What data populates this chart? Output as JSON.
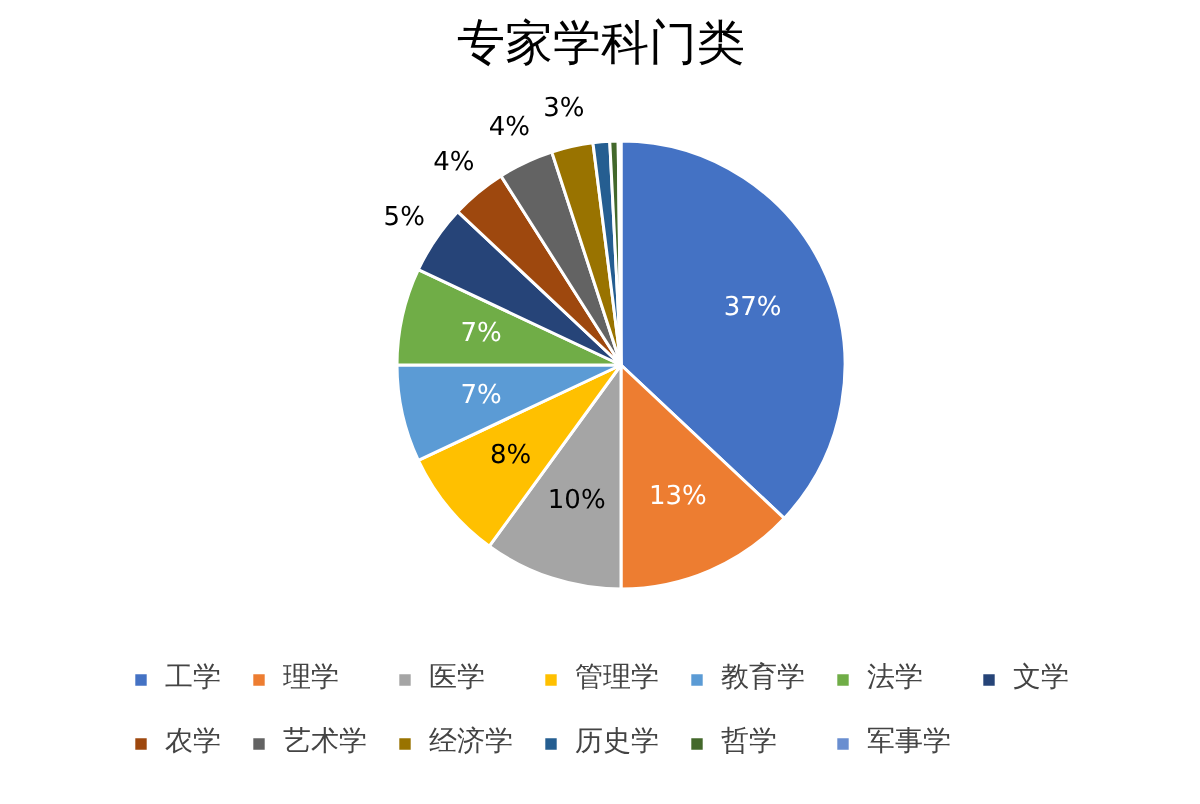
{
  "chart_data": {
    "type": "pie",
    "title": "专家学科门类",
    "categories": [
      "工学",
      "理学",
      "医学",
      "管理学",
      "教育学",
      "法学",
      "文学",
      "农学",
      "艺术学",
      "经济学",
      "历史学",
      "哲学",
      "军事学"
    ],
    "values": [
      37,
      13,
      10,
      8,
      7,
      7,
      5,
      4,
      4,
      3,
      1.2,
      0.6,
      0.2
    ],
    "colors": [
      "#4472c4",
      "#ed7d31",
      "#a5a5a5",
      "#ffc000",
      "#5b9bd5",
      "#70ad47",
      "#264478",
      "#9e480e",
      "#636363",
      "#997300",
      "#255e91",
      "#43682b",
      "#698ed0"
    ],
    "value_labels": [
      "37%",
      "13%",
      "10%",
      "8%",
      "7%",
      "7%",
      "5%",
      "4%",
      "4%",
      "3%",
      null,
      null,
      null
    ],
    "legend": "bottom"
  }
}
